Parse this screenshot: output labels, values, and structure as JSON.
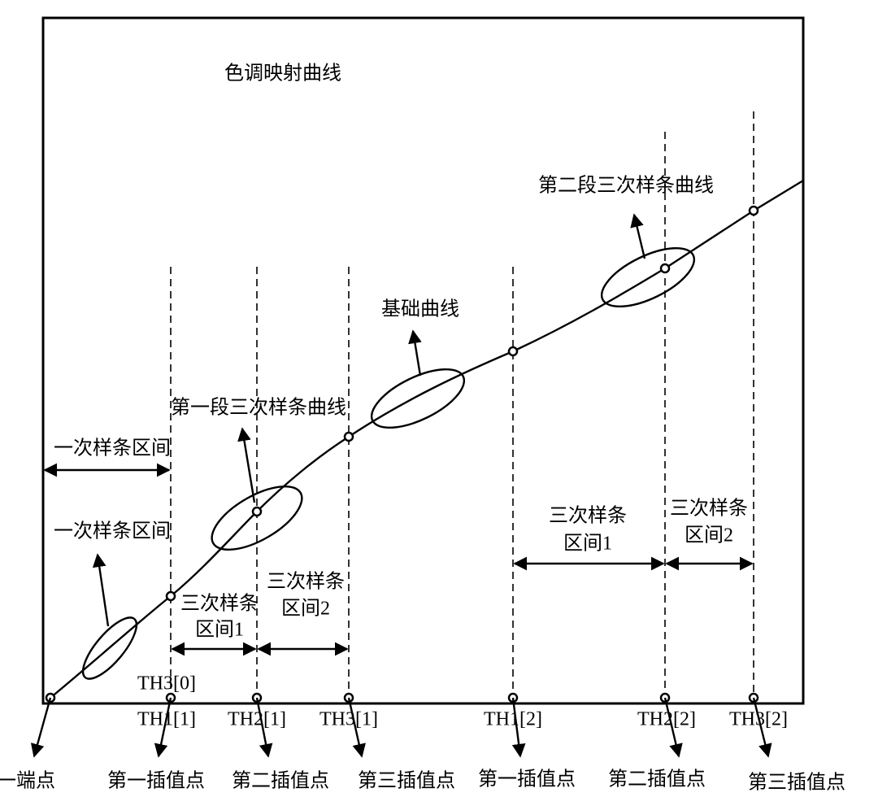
{
  "title": "色调映射曲线",
  "annotations": {
    "linear_interval_top": "一次样条区间",
    "linear_interval_bottom": "一次样条区间",
    "first_spline": "第一段三次样条曲线",
    "base_curve": "基础曲线",
    "second_spline": "第二段三次样条曲线"
  },
  "intervals": [
    {
      "line1": "三次样条",
      "line2": "区间1"
    },
    {
      "line1": "三次样条",
      "line2": "区间2"
    },
    {
      "line1": "三次样条",
      "line2": "区间1"
    },
    {
      "line1": "三次样条",
      "line2": "区间2"
    }
  ],
  "thresholds": [
    "TH3[0]",
    "TH1[1]",
    "TH2[1]",
    "TH3[1]",
    "TH1[2]",
    "TH2[2]",
    "TH3[2]"
  ],
  "points": [
    "一端点",
    "第一插值点",
    "第二插值点",
    "第三插值点",
    "第一插值点",
    "第二插值点",
    "第三插值点"
  ]
}
